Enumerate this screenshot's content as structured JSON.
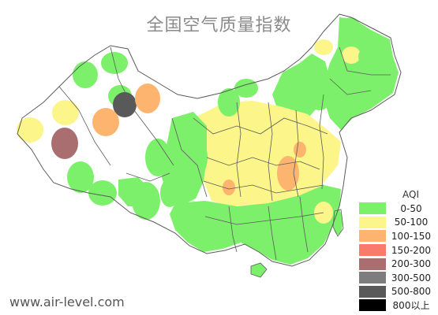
{
  "title": "全国空气质量指数",
  "website": "www.air-level.com",
  "colors": {
    "good": "#7cf06a",
    "moderate": "#fbf58a",
    "usg": "#fdb46f",
    "unhealthy": "#fa7a6e",
    "very_unhealthy": "#a86e70",
    "hazardous_low": "#7d7d7d",
    "hazardous_high": "#595959",
    "extreme": "#000000",
    "border": "#5b5b5b"
  },
  "legend": {
    "title": "AQI",
    "items": [
      {
        "label": "0-50",
        "color": "#7cf06a"
      },
      {
        "label": "50-100",
        "color": "#fbf58a"
      },
      {
        "label": "100-150",
        "color": "#fdb46f"
      },
      {
        "label": "150-200",
        "color": "#fa7a6e"
      },
      {
        "label": "200-300",
        "color": "#a86e70"
      },
      {
        "label": "300-500",
        "color": "#7d7d7d"
      },
      {
        "label": "500-800",
        "color": "#595959"
      },
      {
        "label": "800以上",
        "color": "#000000"
      }
    ]
  }
}
